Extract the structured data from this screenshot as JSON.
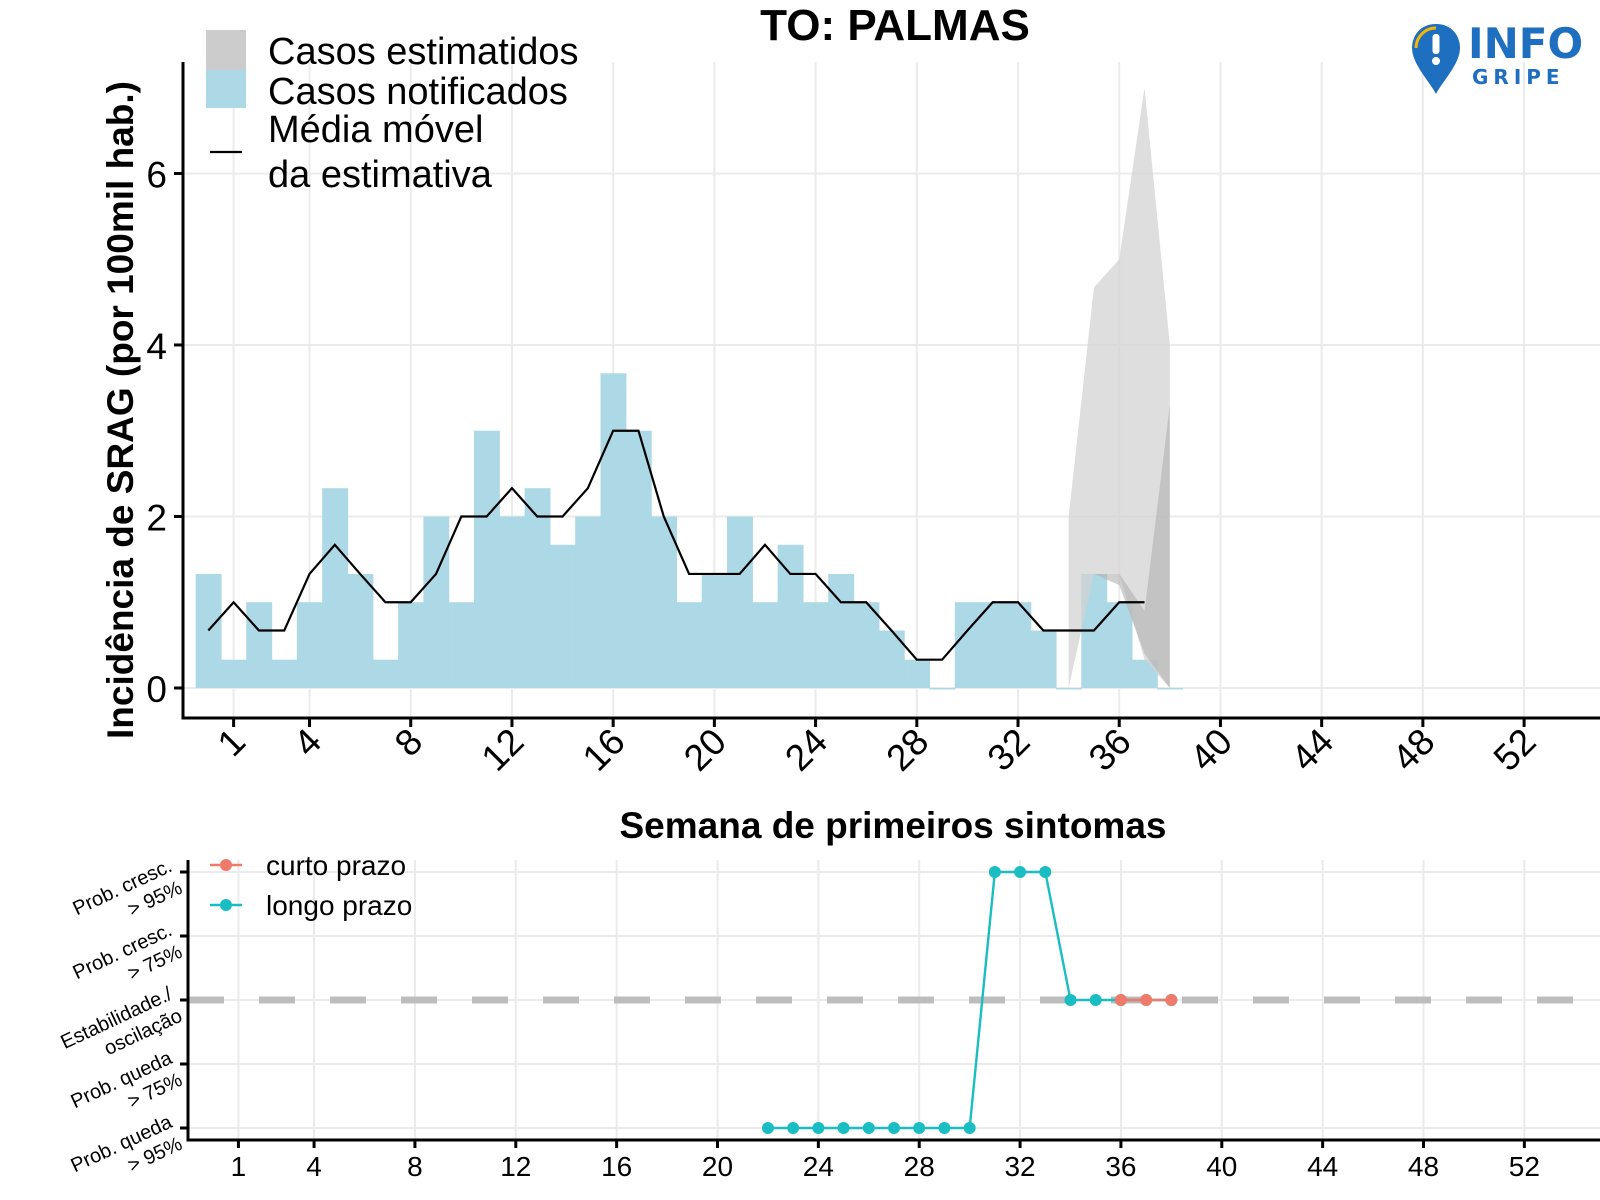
{
  "title": "TO: PALMAS",
  "logo": {
    "word1": "INFO",
    "word2": "GRIPE",
    "color": "#1f6fc0",
    "icon": "location-pin-icon"
  },
  "chart_data": [
    {
      "type": "bar",
      "title": "TO: PALMAS",
      "xlabel": "Semana de primeiros sintomas",
      "ylabel": "Incidência de SRAG (por 100mil hab.)",
      "xlim": [
        -1,
        55
      ],
      "ylim": [
        -0.35,
        7.3
      ],
      "x_ticks": [
        1,
        4,
        8,
        12,
        16,
        20,
        24,
        28,
        32,
        36,
        40,
        44,
        48,
        52
      ],
      "y_ticks": [
        0,
        2,
        4,
        6
      ],
      "legend": {
        "placement": "top-left",
        "items": [
          {
            "label": "Casos estimatidos",
            "kind": "fill",
            "color": "#cccccc"
          },
          {
            "label": "Casos notificados",
            "kind": "fill",
            "color": "#add8e6"
          },
          {
            "label": "Média móvel\nda estimativa",
            "kind": "line",
            "color": "#000000"
          }
        ]
      },
      "colors": {
        "notified": "#add8e6",
        "estimate_band": "#d3d3d3",
        "estimate_inner": "#b0b0b0",
        "moving_average": "#000000",
        "grid": "#ebebeb"
      },
      "notified": {
        "weeks": [
          0,
          1,
          2,
          3,
          4,
          5,
          6,
          7,
          8,
          9,
          10,
          11,
          12,
          13,
          14,
          15,
          16,
          17,
          18,
          19,
          20,
          21,
          22,
          23,
          24,
          25,
          26,
          27,
          28,
          29,
          30,
          31,
          32,
          33,
          34,
          35,
          36,
          37,
          38
        ],
        "values": [
          1.33,
          0.33,
          1.0,
          0.33,
          1.0,
          2.33,
          1.33,
          0.33,
          1.0,
          2.0,
          1.0,
          3.0,
          2.0,
          2.33,
          1.67,
          2.0,
          3.67,
          3.0,
          2.0,
          1.0,
          1.33,
          2.0,
          1.0,
          1.67,
          1.0,
          1.33,
          1.0,
          0.67,
          0.33,
          0.0,
          1.0,
          1.0,
          1.0,
          0.67,
          0.0,
          1.33,
          1.0,
          0.33,
          0.0
        ]
      },
      "estimated_range": {
        "weeks": [
          34,
          35,
          36,
          37,
          38
        ],
        "outer_lower": [
          0.0,
          1.33,
          1.33,
          0.33,
          0.0
        ],
        "outer_upper": [
          2.0,
          4.67,
          5.0,
          7.0,
          4.0
        ],
        "inner_lower": [
          0.0,
          1.33,
          1.2,
          0.4,
          0.0
        ],
        "inner_upper": [
          0.0,
          1.33,
          1.33,
          0.9,
          3.3
        ]
      },
      "moving_average": {
        "weeks": [
          0,
          1,
          2,
          3,
          4,
          5,
          6,
          7,
          8,
          9,
          10,
          11,
          12,
          13,
          14,
          15,
          16,
          17,
          18,
          19,
          20,
          21,
          22,
          23,
          24,
          25,
          26,
          27,
          28,
          29,
          30,
          31,
          32,
          33,
          34,
          35,
          36,
          37
        ],
        "values": [
          0.67,
          1.0,
          0.67,
          0.67,
          1.33,
          1.67,
          1.33,
          1.0,
          1.0,
          1.33,
          2.0,
          2.0,
          2.33,
          2.0,
          2.0,
          2.33,
          3.0,
          3.0,
          2.0,
          1.33,
          1.33,
          1.33,
          1.67,
          1.33,
          1.33,
          1.0,
          1.0,
          0.67,
          0.33,
          0.33,
          0.67,
          1.0,
          1.0,
          0.67,
          0.67,
          0.67,
          1.0,
          1.0
        ]
      }
    },
    {
      "type": "line",
      "xlabel": "",
      "ylabel": "",
      "xlim": [
        -1,
        55
      ],
      "x_ticks": [
        1,
        4,
        8,
        12,
        16,
        20,
        24,
        28,
        32,
        36,
        40,
        44,
        48,
        52
      ],
      "y_levels": [
        -2,
        -1,
        0,
        1,
        2
      ],
      "y_tick_labels": [
        {
          "level": 2,
          "line1": "Prob. cresc.",
          "line2": "> 95%"
        },
        {
          "level": 1,
          "line1": "Prob. cresc.",
          "line2": "> 75%"
        },
        {
          "level": 0,
          "line1": "Estabilidade./",
          "line2": "oscilação"
        },
        {
          "level": -1,
          "line1": "Prob. queda",
          "line2": "> 75%"
        },
        {
          "level": -2,
          "line1": "Prob. queda",
          "line2": "> 95%"
        }
      ],
      "reference_line": {
        "level": 0,
        "style": "dashed",
        "color": "#bdbdbd"
      },
      "legend": {
        "placement": "top-left"
      },
      "series": [
        {
          "name": "curto prazo",
          "color": "#f07a6a",
          "x": [
            36,
            37,
            38
          ],
          "y": [
            0,
            0,
            0
          ]
        },
        {
          "name": "longo prazo",
          "color": "#1abdc2",
          "x": [
            22,
            23,
            24,
            25,
            26,
            27,
            28,
            29,
            30,
            31,
            32,
            33,
            34,
            35,
            36,
            37,
            38
          ],
          "y": [
            -2,
            -2,
            -2,
            -2,
            -2,
            -2,
            -2,
            -2,
            -2,
            2,
            2,
            2,
            0,
            0,
            0,
            0,
            0
          ]
        }
      ]
    }
  ]
}
